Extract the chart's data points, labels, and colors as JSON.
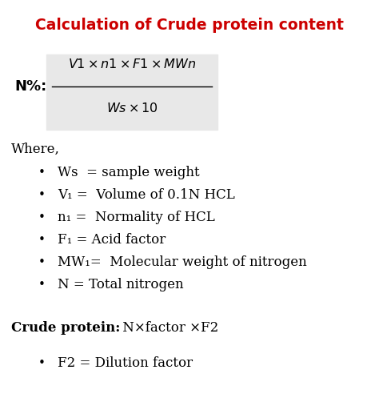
{
  "title": "Calculation of Crude protein content",
  "title_color": "#cc0000",
  "title_fontsize": 13.5,
  "bg_color": "#ffffff",
  "formula_box_color": "#e8e8e8",
  "formula_label": "N%:",
  "where_text": "Where,",
  "bullet_items": [
    "Ws  = sample weight",
    "V₁ =  Volume of 0.1N HCL",
    "n₁ =  Normality of HCL",
    "F₁ = Acid factor",
    "MW₁=  Molecular weight of nitrogen",
    "N = Total nitrogen"
  ],
  "crude_protein_label": "Crude protein:",
  "crude_protein_formula": " N×factor ×F2",
  "f2_bullet": "F2 = Dilution factor",
  "font_size_body": 12,
  "font_size_formula": 11.5
}
